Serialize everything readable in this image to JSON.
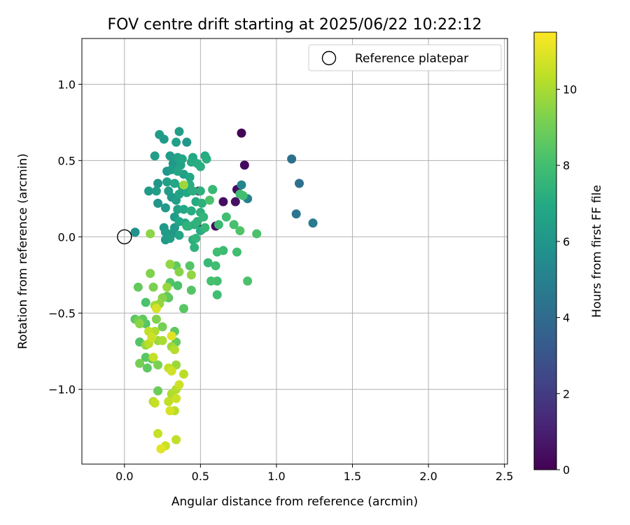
{
  "chart_data": {
    "type": "scatter",
    "title": "FOV centre drift starting at 2025/06/22 10:22:12",
    "xlabel": "Angular distance from reference (arcmin)",
    "ylabel": "Rotation from reference (arcmin)",
    "xlim": [
      -0.28,
      2.52
    ],
    "ylim": [
      -1.49,
      1.3
    ],
    "x_ticks": [
      0.0,
      0.5,
      1.0,
      1.5,
      2.0,
      2.5
    ],
    "x_tick_labels": [
      "0.0",
      "0.5",
      "1.0",
      "1.5",
      "2.0",
      "2.5"
    ],
    "y_ticks": [
      -1.0,
      -0.5,
      0.0,
      0.5,
      1.0
    ],
    "y_tick_labels": [
      "−1.0",
      "−0.5",
      "0.0",
      "0.5",
      "1.0"
    ],
    "grid": true,
    "legend": {
      "placement": "top-right",
      "entries": [
        "Reference platepar"
      ]
    },
    "reference_point": {
      "x": 0.0,
      "y": 0.0,
      "label": "Reference platepar"
    },
    "colorbar": {
      "label": "Hours from first FF file",
      "colormap": "viridis",
      "range": [
        0,
        11.5
      ],
      "ticks": [
        0,
        2,
        4,
        6,
        8,
        10
      ],
      "tick_labels": [
        "0",
        "2",
        "4",
        "6",
        "8",
        "10"
      ]
    },
    "points": [
      {
        "x": 0.77,
        "y": 0.68,
        "t": 0.1
      },
      {
        "x": 0.79,
        "y": 0.47,
        "t": 0.3
      },
      {
        "x": 0.74,
        "y": 0.31,
        "t": 0.3
      },
      {
        "x": 0.65,
        "y": 0.23,
        "t": 0.4
      },
      {
        "x": 0.73,
        "y": 0.23,
        "t": 0.5
      },
      {
        "x": 0.6,
        "y": 0.07,
        "t": 0.4
      },
      {
        "x": 0.49,
        "y": 0.3,
        "t": 0.6
      },
      {
        "x": 0.51,
        "y": 0.05,
        "t": 0.8
      },
      {
        "x": 1.1,
        "y": 0.51,
        "t": 4.2
      },
      {
        "x": 1.15,
        "y": 0.35,
        "t": 4.3
      },
      {
        "x": 1.13,
        "y": 0.15,
        "t": 4.5
      },
      {
        "x": 1.24,
        "y": 0.09,
        "t": 4.7
      },
      {
        "x": 0.81,
        "y": 0.25,
        "t": 5.0
      },
      {
        "x": 0.77,
        "y": 0.34,
        "t": 5.2
      },
      {
        "x": 0.07,
        "y": 0.03,
        "t": 5.8
      },
      {
        "x": 0.36,
        "y": 0.69,
        "t": 6.4
      },
      {
        "x": 0.23,
        "y": 0.67,
        "t": 6.3
      },
      {
        "x": 0.26,
        "y": 0.64,
        "t": 6.2
      },
      {
        "x": 0.34,
        "y": 0.62,
        "t": 6.5
      },
      {
        "x": 0.41,
        "y": 0.62,
        "t": 6.1
      },
      {
        "x": 0.2,
        "y": 0.53,
        "t": 6.4
      },
      {
        "x": 0.3,
        "y": 0.53,
        "t": 6.3
      },
      {
        "x": 0.35,
        "y": 0.52,
        "t": 6.6
      },
      {
        "x": 0.38,
        "y": 0.51,
        "t": 6.8
      },
      {
        "x": 0.45,
        "y": 0.52,
        "t": 6.9
      },
      {
        "x": 0.53,
        "y": 0.53,
        "t": 7.0
      },
      {
        "x": 0.54,
        "y": 0.51,
        "t": 7.2
      },
      {
        "x": 0.32,
        "y": 0.48,
        "t": 6.1
      },
      {
        "x": 0.37,
        "y": 0.47,
        "t": 6.6
      },
      {
        "x": 0.44,
        "y": 0.49,
        "t": 7.0
      },
      {
        "x": 0.48,
        "y": 0.48,
        "t": 7.1
      },
      {
        "x": 0.5,
        "y": 0.46,
        "t": 7.2
      },
      {
        "x": 0.28,
        "y": 0.43,
        "t": 6.0
      },
      {
        "x": 0.31,
        "y": 0.44,
        "t": 6.3
      },
      {
        "x": 0.35,
        "y": 0.43,
        "t": 6.7
      },
      {
        "x": 0.39,
        "y": 0.41,
        "t": 6.5
      },
      {
        "x": 0.43,
        "y": 0.39,
        "t": 6.9
      },
      {
        "x": 0.22,
        "y": 0.35,
        "t": 6.0
      },
      {
        "x": 0.28,
        "y": 0.36,
        "t": 6.5
      },
      {
        "x": 0.33,
        "y": 0.35,
        "t": 6.8
      },
      {
        "x": 0.38,
        "y": 0.33,
        "t": 6.2
      },
      {
        "x": 0.43,
        "y": 0.34,
        "t": 7.1
      },
      {
        "x": 0.16,
        "y": 0.3,
        "t": 6.2
      },
      {
        "x": 0.21,
        "y": 0.3,
        "t": 6.4
      },
      {
        "x": 0.29,
        "y": 0.3,
        "t": 6.3
      },
      {
        "x": 0.36,
        "y": 0.28,
        "t": 6.6
      },
      {
        "x": 0.41,
        "y": 0.29,
        "t": 6.9
      },
      {
        "x": 0.45,
        "y": 0.3,
        "t": 7.2
      },
      {
        "x": 0.5,
        "y": 0.3,
        "t": 7.3
      },
      {
        "x": 0.58,
        "y": 0.31,
        "t": 7.5
      },
      {
        "x": 0.31,
        "y": 0.26,
        "t": 6.1
      },
      {
        "x": 0.34,
        "y": 0.24,
        "t": 6.4
      },
      {
        "x": 0.47,
        "y": 0.23,
        "t": 7.0
      },
      {
        "x": 0.51,
        "y": 0.22,
        "t": 7.3
      },
      {
        "x": 0.22,
        "y": 0.22,
        "t": 6.0
      },
      {
        "x": 0.27,
        "y": 0.19,
        "t": 6.2
      },
      {
        "x": 0.35,
        "y": 0.18,
        "t": 6.6
      },
      {
        "x": 0.39,
        "y": 0.18,
        "t": 6.9
      },
      {
        "x": 0.44,
        "y": 0.17,
        "t": 7.1
      },
      {
        "x": 0.5,
        "y": 0.16,
        "t": 7.3
      },
      {
        "x": 0.33,
        "y": 0.13,
        "t": 6.3
      },
      {
        "x": 0.36,
        "y": 0.1,
        "t": 6.8
      },
      {
        "x": 0.4,
        "y": 0.09,
        "t": 7.0
      },
      {
        "x": 0.48,
        "y": 0.1,
        "t": 7.4
      },
      {
        "x": 0.52,
        "y": 0.13,
        "t": 7.5
      },
      {
        "x": 0.33,
        "y": 0.06,
        "t": 6.2
      },
      {
        "x": 0.26,
        "y": 0.06,
        "t": 6.1
      },
      {
        "x": 0.27,
        "y": 0.03,
        "t": 6.3
      },
      {
        "x": 0.31,
        "y": 0.02,
        "t": 6.0
      },
      {
        "x": 0.42,
        "y": 0.07,
        "t": 7.0
      },
      {
        "x": 0.46,
        "y": 0.08,
        "t": 7.3
      },
      {
        "x": 0.5,
        "y": 0.04,
        "t": 7.1
      },
      {
        "x": 0.53,
        "y": 0.06,
        "t": 7.6
      },
      {
        "x": 0.27,
        "y": -0.02,
        "t": 6.2
      },
      {
        "x": 0.3,
        "y": -0.01,
        "t": 6.4
      },
      {
        "x": 0.36,
        "y": 0.01,
        "t": 6.8
      },
      {
        "x": 0.45,
        "y": -0.02,
        "t": 7.2
      },
      {
        "x": 0.47,
        "y": -0.01,
        "t": 7.5
      },
      {
        "x": 0.46,
        "y": -0.07,
        "t": 7.4
      },
      {
        "x": 0.62,
        "y": 0.08,
        "t": 7.8
      },
      {
        "x": 0.56,
        "y": 0.24,
        "t": 8.2
      },
      {
        "x": 0.58,
        "y": 0.31,
        "t": 7.7
      },
      {
        "x": 0.67,
        "y": 0.13,
        "t": 7.9
      },
      {
        "x": 0.72,
        "y": 0.08,
        "t": 8.1
      },
      {
        "x": 0.76,
        "y": 0.04,
        "t": 8.3
      },
      {
        "x": 0.76,
        "y": 0.28,
        "t": 7.9
      },
      {
        "x": 0.78,
        "y": 0.27,
        "t": 8.0
      },
      {
        "x": 0.87,
        "y": 0.02,
        "t": 8.2
      },
      {
        "x": 0.61,
        "y": -0.1,
        "t": 7.9
      },
      {
        "x": 0.65,
        "y": -0.09,
        "t": 7.8
      },
      {
        "x": 0.74,
        "y": -0.1,
        "t": 8.0
      },
      {
        "x": 0.55,
        "y": -0.17,
        "t": 7.7
      },
      {
        "x": 0.6,
        "y": -0.19,
        "t": 7.9
      },
      {
        "x": 0.57,
        "y": -0.29,
        "t": 8.1
      },
      {
        "x": 0.61,
        "y": -0.29,
        "t": 8.0
      },
      {
        "x": 0.81,
        "y": -0.29,
        "t": 8.2
      },
      {
        "x": 0.61,
        "y": -0.38,
        "t": 7.9
      },
      {
        "x": 0.41,
        "y": 0.07,
        "t": 7.4
      },
      {
        "x": 0.39,
        "y": 0.34,
        "t": 9.8
      },
      {
        "x": 0.17,
        "y": 0.02,
        "t": 9.5
      },
      {
        "x": 0.43,
        "y": -0.19,
        "t": 8.4
      },
      {
        "x": 0.34,
        "y": -0.19,
        "t": 8.6
      },
      {
        "x": 0.3,
        "y": -0.3,
        "t": 8.3
      },
      {
        "x": 0.35,
        "y": -0.32,
        "t": 8.2
      },
      {
        "x": 0.44,
        "y": -0.35,
        "t": 8.4
      },
      {
        "x": 0.29,
        "y": -0.4,
        "t": 8.5
      },
      {
        "x": 0.28,
        "y": -0.39,
        "t": 8.7
      },
      {
        "x": 0.39,
        "y": -0.47,
        "t": 8.5
      },
      {
        "x": 0.14,
        "y": -0.43,
        "t": 8.2
      },
      {
        "x": 0.09,
        "y": -0.33,
        "t": 8.7
      },
      {
        "x": 0.17,
        "y": -0.24,
        "t": 9.3
      },
      {
        "x": 0.3,
        "y": -0.18,
        "t": 9.6
      },
      {
        "x": 0.36,
        "y": -0.23,
        "t": 9.4
      },
      {
        "x": 0.44,
        "y": -0.25,
        "t": 9.6
      },
      {
        "x": 0.19,
        "y": -0.33,
        "t": 9.2
      },
      {
        "x": 0.28,
        "y": -0.33,
        "t": 9.7
      },
      {
        "x": 0.25,
        "y": -0.4,
        "t": 9.4
      },
      {
        "x": 0.2,
        "y": -0.45,
        "t": 9.9
      },
      {
        "x": 0.21,
        "y": -0.47,
        "t": 10.8
      },
      {
        "x": 0.23,
        "y": -0.44,
        "t": 9.6
      },
      {
        "x": 0.07,
        "y": -0.54,
        "t": 8.5
      },
      {
        "x": 0.09,
        "y": -0.55,
        "t": 9.0
      },
      {
        "x": 0.12,
        "y": -0.54,
        "t": 8.6
      },
      {
        "x": 0.14,
        "y": -0.57,
        "t": 8.4
      },
      {
        "x": 0.21,
        "y": -0.54,
        "t": 9.3
      },
      {
        "x": 0.25,
        "y": -0.59,
        "t": 9.1
      },
      {
        "x": 0.1,
        "y": -0.57,
        "t": 9.5
      },
      {
        "x": 0.16,
        "y": -0.62,
        "t": 10.4
      },
      {
        "x": 0.18,
        "y": -0.66,
        "t": 10.6
      },
      {
        "x": 0.2,
        "y": -0.62,
        "t": 10.1
      },
      {
        "x": 0.16,
        "y": -0.7,
        "t": 10.3
      },
      {
        "x": 0.22,
        "y": -0.68,
        "t": 9.8
      },
      {
        "x": 0.25,
        "y": -0.68,
        "t": 10.0
      },
      {
        "x": 0.33,
        "y": -0.62,
        "t": 8.6
      },
      {
        "x": 0.34,
        "y": -0.69,
        "t": 8.8
      },
      {
        "x": 0.31,
        "y": -0.72,
        "t": 9.8
      },
      {
        "x": 0.31,
        "y": -0.65,
        "t": 11.0
      },
      {
        "x": 0.33,
        "y": -0.74,
        "t": 10.2
      },
      {
        "x": 0.1,
        "y": -0.69,
        "t": 8.4
      },
      {
        "x": 0.14,
        "y": -0.71,
        "t": 9.7
      },
      {
        "x": 0.14,
        "y": -0.79,
        "t": 8.5
      },
      {
        "x": 0.19,
        "y": -0.79,
        "t": 10.5
      },
      {
        "x": 0.18,
        "y": -0.8,
        "t": 8.7
      },
      {
        "x": 0.1,
        "y": -0.83,
        "t": 9.1
      },
      {
        "x": 0.15,
        "y": -0.86,
        "t": 8.6
      },
      {
        "x": 0.22,
        "y": -0.84,
        "t": 9.2
      },
      {
        "x": 0.29,
        "y": -0.86,
        "t": 10.4
      },
      {
        "x": 0.31,
        "y": -0.88,
        "t": 10.7
      },
      {
        "x": 0.34,
        "y": -0.84,
        "t": 9.8
      },
      {
        "x": 0.39,
        "y": -0.9,
        "t": 10.3
      },
      {
        "x": 0.36,
        "y": -0.97,
        "t": 10.6
      },
      {
        "x": 0.34,
        "y": -1.0,
        "t": 10.2
      },
      {
        "x": 0.31,
        "y": -1.03,
        "t": 10.1
      },
      {
        "x": 0.22,
        "y": -1.01,
        "t": 8.9
      },
      {
        "x": 0.29,
        "y": -1.08,
        "t": 10.4
      },
      {
        "x": 0.34,
        "y": -1.06,
        "t": 10.6
      },
      {
        "x": 0.19,
        "y": -1.08,
        "t": 10.2
      },
      {
        "x": 0.2,
        "y": -1.09,
        "t": 10.5
      },
      {
        "x": 0.3,
        "y": -1.14,
        "t": 10.8
      },
      {
        "x": 0.33,
        "y": -1.14,
        "t": 10.3
      },
      {
        "x": 0.22,
        "y": -1.29,
        "t": 10.5
      },
      {
        "x": 0.34,
        "y": -1.33,
        "t": 10.4
      },
      {
        "x": 0.27,
        "y": -1.37,
        "t": 10.6
      },
      {
        "x": 0.24,
        "y": -1.39,
        "t": 11.0
      }
    ]
  }
}
